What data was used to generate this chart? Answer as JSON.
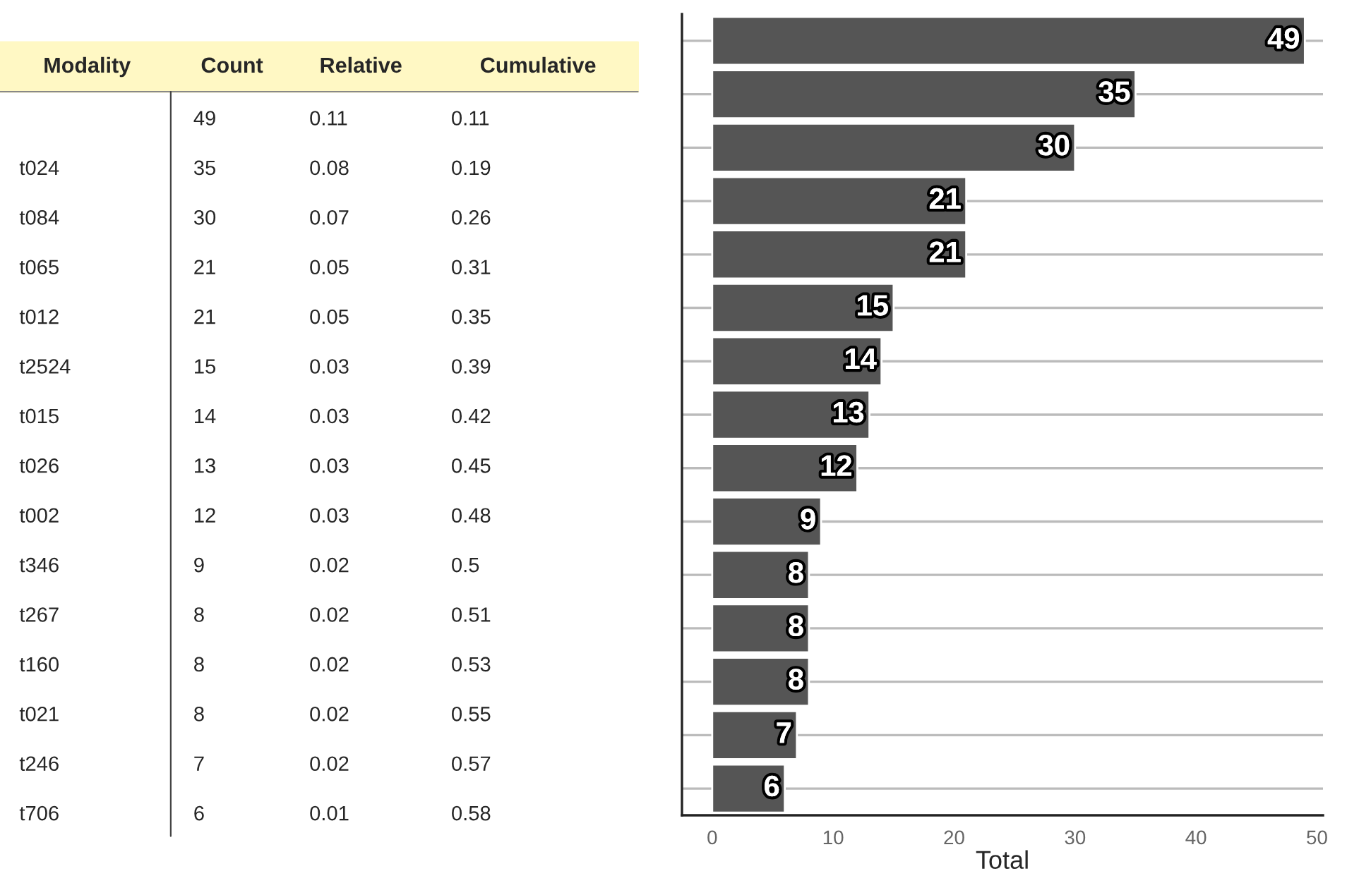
{
  "chart_data": [
    {
      "type": "other",
      "categories": [
        "Modality",
        "Count",
        "Relative",
        "Cumulative"
      ],
      "annotations": [
        null,
        "49",
        "0.11",
        "0.11",
        "t024",
        "35",
        "0.08",
        "0.19",
        "t084",
        "30",
        "0.07",
        "0.26",
        "t065",
        "21",
        "0.05",
        "0.31",
        "t012",
        "21",
        "0.05",
        "0.35",
        "t2524",
        "15",
        "0.03",
        "0.39",
        "t015",
        "14",
        "0.03",
        "0.42",
        "t026",
        "13",
        "0.03",
        "0.45",
        "t002",
        "12",
        "0.03",
        "0.48",
        "t346",
        "9",
        "0.02",
        "0.5",
        "t267",
        "8",
        "0.02",
        "0.51",
        "t160",
        "8",
        "0.02",
        "0.53",
        "t021",
        "8",
        "0.02",
        "0.55",
        "t246",
        "7",
        "0.02",
        "0.57",
        "t706",
        "6",
        "0.01",
        "0.58"
      ]
    },
    {
      "type": "bar",
      "orientation": "horizontal",
      "xlabel": "Total",
      "categories": [
        null,
        null,
        null,
        null,
        null,
        null,
        null,
        null,
        null,
        null,
        null,
        null,
        null,
        null,
        null
      ],
      "values": [
        49,
        35,
        30,
        21,
        21,
        15,
        14,
        13,
        12,
        9,
        8,
        8,
        8,
        7,
        6
      ],
      "color": "#555555",
      "data_labels": true,
      "xlim": [
        -2.5,
        50.5
      ],
      "xticks": [
        0,
        10,
        20,
        30,
        40,
        50
      ],
      "grid": "y",
      "tick_labels": "x"
    }
  ]
}
